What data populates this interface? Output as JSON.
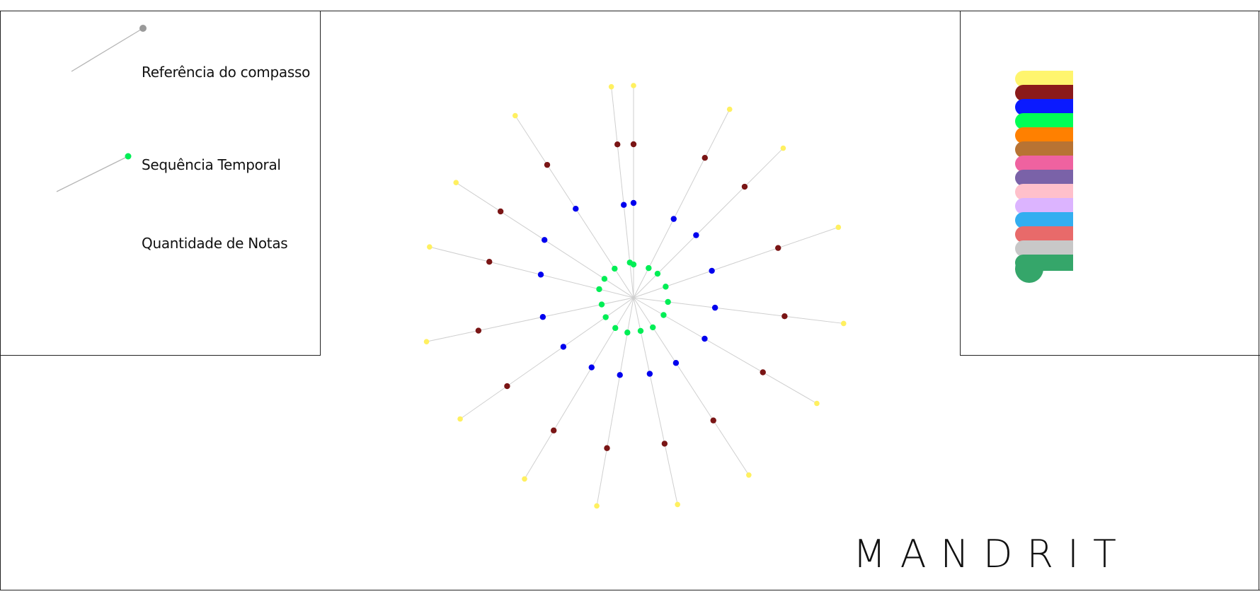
{
  "legend": {
    "compass_label": "Referência do compasso",
    "sequence_label": "Sequência Temporal",
    "notes_label": "Quantidade de Notas"
  },
  "brand": "MANDRIT",
  "colors": {
    "frame": "#222222",
    "spoke": "#cfcfcf",
    "compass_dot": "#9a9a9a",
    "sequence_dot": "#00ee55",
    "ring_inner": "#00ee55",
    "ring_2": "#0000ee",
    "ring_3": "#7a1515",
    "ring_outer": "#fff060"
  },
  "palette": [
    "#fff56e",
    "#8b1a1a",
    "#0a1aff",
    "#00ff55",
    "#ff8000",
    "#b87333",
    "#ef62a0",
    "#7a62a8",
    "#ffc0cb",
    "#dcb4ff",
    "#33aef0",
    "#e86a6a",
    "#c8c8c8",
    "#35a66a"
  ],
  "mandala": {
    "spoke_angles_deg": [
      0,
      354,
      27,
      45,
      71,
      97,
      120,
      147,
      168,
      190,
      211,
      235,
      258,
      284,
      303,
      327
    ],
    "radii_inner": [
      47,
      50,
      47,
      48,
      48,
      49,
      49,
      50,
      48,
      50,
      50,
      48,
      46,
      50,
      49,
      49
    ],
    "radii_2": [
      134,
      132,
      125,
      125,
      117,
      116,
      116,
      110,
      110,
      111,
      115,
      121,
      131,
      135,
      150,
      150
    ],
    "radii_3": [
      217,
      218,
      222,
      222,
      216,
      215,
      211,
      207,
      211,
      216,
      219,
      218,
      224,
      210,
      224,
      224
    ],
    "radii_outer": [
      300,
      300,
      299,
      299,
      306,
      299,
      299,
      299,
      299,
      299,
      299,
      299,
      299,
      297,
      299,
      307
    ]
  }
}
